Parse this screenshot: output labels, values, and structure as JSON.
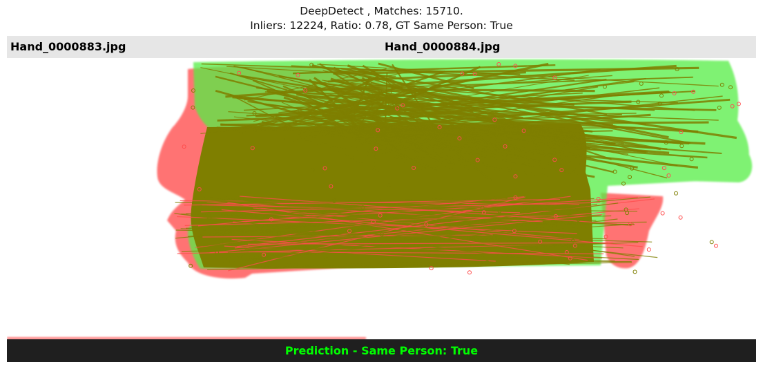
{
  "title": {
    "line1": "DeepDetect , Matches: 15710.",
    "line2": "Inliers: 12224, Ratio: 0.78, GT Same Person: True"
  },
  "images": {
    "left_filename": "Hand_0000883.jpg",
    "right_filename": "Hand_0000884.jpg"
  },
  "prediction": {
    "text": "Prediction - Same Person: True",
    "color": "#00ff00"
  },
  "colors": {
    "left_hand_overlay": "#ff4d4d",
    "right_hand_overlay": "#55ee44",
    "match_lines": "#7f7f00",
    "header_bar": "#e6e6e6",
    "footer_bar": "#1f1f1f"
  }
}
